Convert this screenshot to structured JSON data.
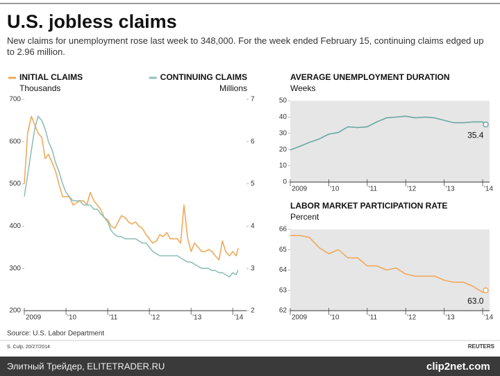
{
  "header": {
    "title": "U.S. jobless claims",
    "subtitle": "New claims for unemployment rose last week to 348,000. For the week ended February 15, continuing claims edged up to 2.96 million."
  },
  "chart_data": [
    {
      "type": "line",
      "y_label": "Thousands",
      "y2_label": "Millions",
      "x": [
        2009,
        2009.08,
        2009.17,
        2009.25,
        2009.33,
        2009.42,
        2009.5,
        2009.58,
        2009.67,
        2009.75,
        2009.83,
        2009.92,
        2010,
        2010.08,
        2010.17,
        2010.25,
        2010.33,
        2010.42,
        2010.5,
        2010.58,
        2010.67,
        2010.75,
        2010.83,
        2010.92,
        2011,
        2011.08,
        2011.17,
        2011.25,
        2011.33,
        2011.42,
        2011.5,
        2011.58,
        2011.67,
        2011.75,
        2011.83,
        2011.92,
        2012,
        2012.08,
        2012.17,
        2012.25,
        2012.33,
        2012.42,
        2012.5,
        2012.58,
        2012.67,
        2012.75,
        2012.83,
        2012.92,
        2013,
        2013.08,
        2013.17,
        2013.25,
        2013.33,
        2013.42,
        2013.5,
        2013.58,
        2013.67,
        2013.75,
        2013.83,
        2013.92,
        2014,
        2014.08,
        2014.13
      ],
      "series": [
        {
          "name": "INITIAL CLAIMS",
          "color": "#f0a95a",
          "values": [
            500,
            620,
            660,
            640,
            620,
            610,
            560,
            570,
            550,
            530,
            500,
            470,
            470,
            470,
            450,
            455,
            460,
            460,
            450,
            480,
            460,
            450,
            440,
            420,
            415,
            400,
            395,
            410,
            425,
            420,
            410,
            405,
            410,
            400,
            395,
            380,
            370,
            360,
            365,
            380,
            375,
            385,
            370,
            370,
            370,
            360,
            450,
            370,
            340,
            360,
            350,
            340,
            340,
            345,
            340,
            330,
            320,
            365,
            340,
            330,
            340,
            330,
            348
          ]
        },
        {
          "name": "CONTINUING CLAIMS",
          "color": "#8fbfb8",
          "axis": "y2",
          "values": [
            4.7,
            5.2,
            5.8,
            6.3,
            6.6,
            6.5,
            6.3,
            6.0,
            5.8,
            5.5,
            5.3,
            5.0,
            4.8,
            4.7,
            4.6,
            4.6,
            4.6,
            4.5,
            4.5,
            4.5,
            4.4,
            4.4,
            4.3,
            4.2,
            4.1,
            3.9,
            3.8,
            3.75,
            3.75,
            3.7,
            3.7,
            3.7,
            3.7,
            3.65,
            3.6,
            3.6,
            3.5,
            3.4,
            3.35,
            3.3,
            3.3,
            3.3,
            3.3,
            3.3,
            3.3,
            3.25,
            3.2,
            3.15,
            3.15,
            3.1,
            3.05,
            3.0,
            3.0,
            3.0,
            2.95,
            2.95,
            2.9,
            2.9,
            2.85,
            2.8,
            2.9,
            2.85,
            2.96
          ]
        }
      ],
      "xlim": [
        2009,
        2014.33
      ],
      "xticks": [
        {
          "value": 2009,
          "label": "2009"
        },
        {
          "value": 2010,
          "label": "'10"
        },
        {
          "value": 2011,
          "label": "'11"
        },
        {
          "value": 2012,
          "label": "'12"
        },
        {
          "value": 2013,
          "label": "'13"
        },
        {
          "value": 2014,
          "label": "'14"
        }
      ],
      "ylim": [
        200,
        700
      ],
      "yticks": [
        200,
        300,
        400,
        500,
        600,
        700
      ],
      "y2lim": [
        2,
        7
      ],
      "y2ticks": [
        2,
        3,
        4,
        5,
        6,
        7
      ]
    },
    {
      "type": "line",
      "title": "AVERAGE UNEMPLOYMENT DURATION",
      "y_label": "Weeks",
      "x": [
        2009,
        2009.25,
        2009.5,
        2009.75,
        2010,
        2010.25,
        2010.5,
        2010.75,
        2011,
        2011.25,
        2011.5,
        2011.75,
        2012,
        2012.25,
        2012.5,
        2012.75,
        2013,
        2013.25,
        2013.5,
        2013.75,
        2014,
        2014.08
      ],
      "values": [
        19.8,
        22,
        24.5,
        26.5,
        29.5,
        30.5,
        34,
        33.5,
        34,
        37,
        39.5,
        40,
        40.5,
        39.5,
        40,
        39.5,
        38,
        36.5,
        36.5,
        37,
        37,
        35.4
      ],
      "color": "#6aa8a0",
      "background": "#e6e6e6",
      "end_label": true,
      "xlim": [
        2009,
        2014.18
      ],
      "xticks": [
        {
          "value": 2009,
          "label": "2009"
        },
        {
          "value": 2010,
          "label": "'10"
        },
        {
          "value": 2011,
          "label": "'11"
        },
        {
          "value": 2012,
          "label": "'12"
        },
        {
          "value": 2013,
          "label": "'13"
        },
        {
          "value": 2014,
          "label": "'14"
        }
      ],
      "ylim": [
        0,
        50
      ],
      "yticks": [
        0,
        10,
        20,
        30,
        40,
        50
      ]
    },
    {
      "type": "line",
      "title": "LABOR MARKET PARTICIPATION RATE",
      "y_label": "Percent",
      "x": [
        2009,
        2009.25,
        2009.5,
        2009.75,
        2010,
        2010.25,
        2010.5,
        2010.75,
        2011,
        2011.25,
        2011.5,
        2011.75,
        2012,
        2012.25,
        2012.5,
        2012.75,
        2013,
        2013.25,
        2013.5,
        2013.75,
        2014,
        2014.08
      ],
      "values": [
        65.7,
        65.7,
        65.6,
        65.1,
        64.8,
        65.0,
        64.6,
        64.6,
        64.2,
        64.2,
        64.0,
        64.1,
        63.8,
        63.7,
        63.7,
        63.7,
        63.5,
        63.4,
        63.4,
        63.2,
        62.9,
        63.0
      ],
      "value_labels": [
        null,
        null,
        null,
        null,
        null,
        null,
        null,
        null,
        null,
        null,
        null,
        null,
        null,
        null,
        null,
        null,
        null,
        null,
        null,
        null,
        null,
        "63.0"
      ],
      "color": "#f0a95a",
      "background": "#e6e6e6",
      "end_label": true,
      "xlim": [
        2009,
        2014.18
      ],
      "xticks": [
        {
          "value": 2009,
          "label": "2009"
        },
        {
          "value": 2010,
          "label": "'10"
        },
        {
          "value": 2011,
          "label": "'11"
        },
        {
          "value": 2012,
          "label": "'12"
        },
        {
          "value": 2013,
          "label": "'13"
        },
        {
          "value": 2014,
          "label": "'14"
        }
      ],
      "ylim": [
        62,
        66
      ],
      "yticks": [
        62,
        63,
        64,
        65,
        66
      ]
    }
  ],
  "footer": {
    "source": "Source: U.S. Labor Department",
    "credit": "S. Culp, 20/27/2014",
    "brand": "REUTERS",
    "watermark": "Элитный Трейдер, ELITETRADER.RU",
    "logo": "clip2net.com"
  }
}
